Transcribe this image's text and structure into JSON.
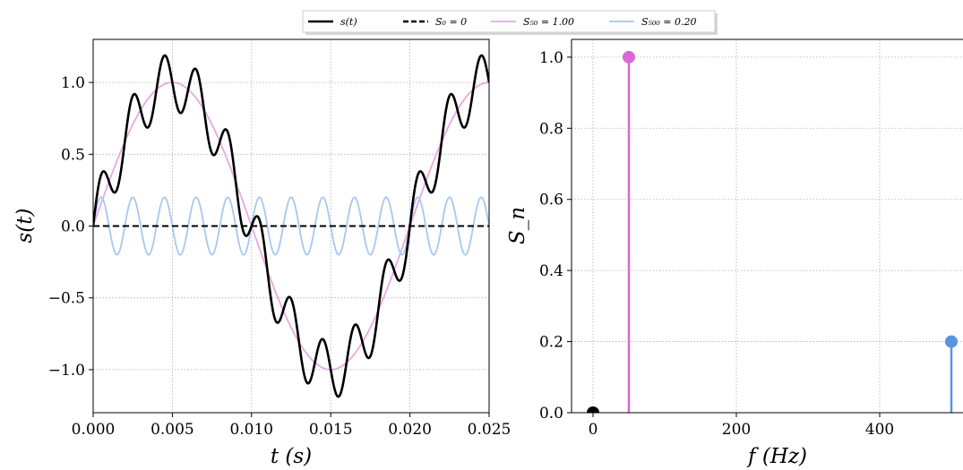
{
  "legend": {
    "placement": "top-center",
    "entries": [
      {
        "label": "s(t)",
        "color": "#000000",
        "dash": "solid"
      },
      {
        "label": "S₀ = 0",
        "color": "#000000",
        "dash": "dashed"
      },
      {
        "label": "S₅₀ = 1.00",
        "color": "#e8a8e0",
        "dash": "solid"
      },
      {
        "label": "S₅₀₀ = 0.20",
        "color": "#a8c8ef",
        "dash": "solid"
      }
    ]
  },
  "chart_data": [
    {
      "type": "line",
      "xlabel": "t (s)",
      "ylabel": "s(t)",
      "xlim": [
        0,
        0.025
      ],
      "ylim": [
        -1.3,
        1.3
      ],
      "xticks": [
        0.0,
        0.005,
        0.01,
        0.015,
        0.02,
        0.025
      ],
      "xtick_labels": [
        "0.000",
        "0.005",
        "0.010",
        "0.015",
        "0.020",
        "0.025"
      ],
      "yticks": [
        -1.0,
        -0.5,
        0.0,
        0.5,
        1.0
      ],
      "ytick_labels": [
        "−1.0",
        "−0.5",
        "0.0",
        "0.5",
        "1.0"
      ],
      "grid": true,
      "series": [
        {
          "name": "S₅₀ = 1.00",
          "function": "sin",
          "amplitude": 1.0,
          "frequency_hz": 50,
          "color": "#e8a8e0"
        },
        {
          "name": "S₅₀₀ = 0.20",
          "function": "sin",
          "amplitude": 0.2,
          "frequency_hz": 500,
          "color": "#a8c8ef"
        },
        {
          "name": "S₀ = 0",
          "function": "constant",
          "amplitude": 0.0,
          "frequency_hz": 0,
          "color": "#000000",
          "dash": "dashed"
        },
        {
          "name": "s(t)",
          "function": "sum",
          "color": "#000000"
        }
      ]
    },
    {
      "type": "stem",
      "xlabel": "f (Hz)",
      "ylabel": "S_n",
      "xlim": [
        -30,
        520
      ],
      "ylim": [
        0,
        1.05
      ],
      "xticks": [
        0,
        200,
        400
      ],
      "xtick_labels": [
        "0",
        "200",
        "400"
      ],
      "yticks": [
        0.0,
        0.2,
        0.4,
        0.6,
        0.8,
        1.0
      ],
      "ytick_labels": [
        "0.0",
        "0.2",
        "0.4",
        "0.6",
        "0.8",
        "1.0"
      ],
      "grid": true,
      "stems": [
        {
          "x": 0,
          "y": 0.0,
          "color": "#000000"
        },
        {
          "x": 50,
          "y": 1.0,
          "color": "#dd66d6"
        },
        {
          "x": 500,
          "y": 0.2,
          "color": "#5b93e0"
        }
      ]
    }
  ]
}
